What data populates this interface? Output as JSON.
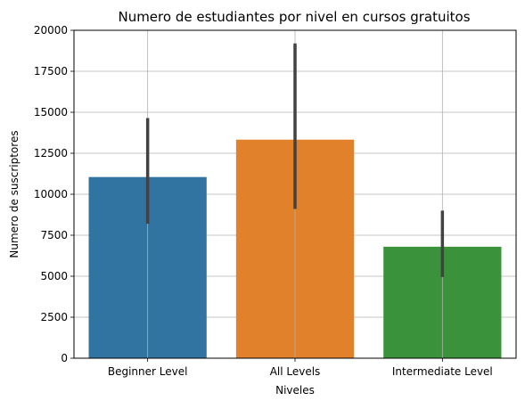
{
  "chart_data": {
    "type": "bar",
    "title": "Numero de estudiantes por nivel en cursos gratuitos",
    "xlabel": "Niveles",
    "ylabel": "Numero de suscriptores",
    "categories": [
      "Beginner Level",
      "All Levels",
      "Intermediate Level"
    ],
    "values": [
      11050,
      13330,
      6800
    ],
    "error_low": [
      8200,
      9100,
      4950
    ],
    "error_high": [
      14650,
      19200,
      9000
    ],
    "colors": [
      "#3274a1",
      "#e1812c",
      "#3a923a"
    ],
    "error_color": "#424242",
    "ylim": [
      0,
      20000
    ],
    "yticks": [
      0,
      2500,
      5000,
      7500,
      10000,
      12500,
      15000,
      17500,
      20000
    ],
    "ytick_labels": [
      "0",
      "2500",
      "5000",
      "7500",
      "10000",
      "12500",
      "15000",
      "17500",
      "20000"
    ],
    "grid": true
  }
}
